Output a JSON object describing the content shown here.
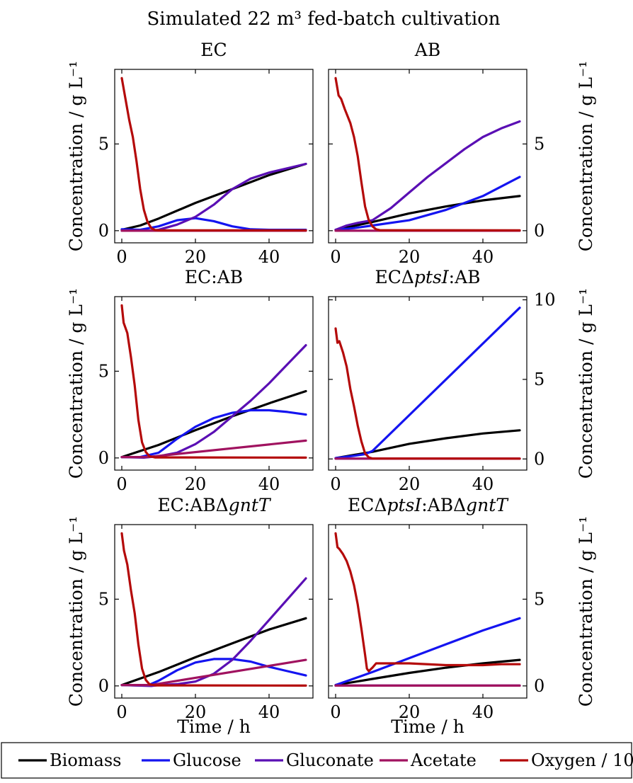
{
  "figure": {
    "title": "Simulated 22 m³ fed-batch cultivation",
    "ylabel": "Concentration / g L⁻¹",
    "xlabel": "Time / h"
  },
  "legend": {
    "placement": "bottom",
    "entries": [
      {
        "label": "Biomass",
        "color": "#000000"
      },
      {
        "label": "Glucose",
        "color": "#1414f0"
      },
      {
        "label": "Gluconate",
        "color": "#5a0fb4"
      },
      {
        "label": "Acetate",
        "color": "#a0125f"
      },
      {
        "label": "Oxygen / 1000",
        "color": "#b40a0a"
      }
    ]
  },
  "chart_data": [
    {
      "type": "line",
      "title": "EC",
      "xlim": [
        0,
        50
      ],
      "ylim": [
        -0.7,
        9.3
      ],
      "xticks": [
        0,
        20,
        40
      ],
      "yticks": [
        0,
        5
      ],
      "ytick_side": "left",
      "series": [
        {
          "name": "Biomass",
          "x": [
            0,
            5,
            10,
            20,
            30,
            40,
            50
          ],
          "y": [
            0.05,
            0.3,
            0.7,
            1.6,
            2.4,
            3.2,
            3.85
          ]
        },
        {
          "name": "Glucose",
          "x": [
            0,
            5,
            10,
            15,
            20,
            25,
            30,
            35,
            40,
            50
          ],
          "y": [
            0.08,
            0.05,
            0.25,
            0.6,
            0.72,
            0.55,
            0.25,
            0.08,
            0.05,
            0.05
          ]
        },
        {
          "name": "Gluconate",
          "x": [
            0,
            8,
            10,
            15,
            20,
            25,
            30,
            35,
            40,
            50
          ],
          "y": [
            0,
            0,
            0.05,
            0.35,
            0.8,
            1.5,
            2.4,
            3.0,
            3.35,
            3.85
          ]
        },
        {
          "name": "Acetate",
          "x": [
            0,
            50
          ],
          "y": [
            0,
            0
          ]
        },
        {
          "name": "Oxygen / 1000",
          "x": [
            0,
            1,
            2,
            3,
            4,
            5,
            6,
            7,
            8,
            9,
            10,
            50
          ],
          "y": [
            8.8,
            7.6,
            6.4,
            5.4,
            4.0,
            2.4,
            1.2,
            0.5,
            0.15,
            0.04,
            0.02,
            0.02
          ]
        }
      ]
    },
    {
      "type": "line",
      "title": "AB",
      "xlim": [
        0,
        50
      ],
      "ylim": [
        -0.7,
        9.3
      ],
      "xticks": [
        0,
        20,
        40
      ],
      "yticks": [
        0,
        5
      ],
      "ytick_side": "right",
      "series": [
        {
          "name": "Biomass",
          "x": [
            0,
            10,
            20,
            30,
            40,
            50
          ],
          "y": [
            0.05,
            0.5,
            1.0,
            1.4,
            1.75,
            2.0
          ]
        },
        {
          "name": "Glucose",
          "x": [
            0,
            5,
            10,
            20,
            30,
            40,
            50
          ],
          "y": [
            0.05,
            0.15,
            0.3,
            0.6,
            1.2,
            2.0,
            3.1
          ]
        },
        {
          "name": "Gluconate",
          "x": [
            0,
            3,
            6,
            10,
            15,
            20,
            25,
            30,
            35,
            40,
            45,
            50
          ],
          "y": [
            0.05,
            0.3,
            0.45,
            0.6,
            1.3,
            2.2,
            3.1,
            3.9,
            4.7,
            5.4,
            5.9,
            6.3
          ]
        },
        {
          "name": "Acetate",
          "x": [
            0,
            50
          ],
          "y": [
            0,
            0
          ]
        },
        {
          "name": "Oxygen / 1000",
          "x": [
            0,
            0.8,
            1.5,
            2.5,
            4,
            5,
            6,
            7,
            8,
            9,
            10,
            11,
            12,
            50
          ],
          "y": [
            8.8,
            7.8,
            7.6,
            7.0,
            6.2,
            5.4,
            4.3,
            2.8,
            1.4,
            0.6,
            0.25,
            0.08,
            0.03,
            0.02
          ]
        }
      ]
    },
    {
      "type": "line",
      "title": "EC:AB",
      "xlim": [
        0,
        50
      ],
      "ylim": [
        -0.7,
        9.3
      ],
      "xticks": [
        0,
        20,
        40
      ],
      "yticks": [
        0,
        5
      ],
      "ytick_side": "left",
      "series": [
        {
          "name": "Biomass",
          "x": [
            0,
            10,
            20,
            30,
            40,
            50
          ],
          "y": [
            0.05,
            0.75,
            1.6,
            2.4,
            3.15,
            3.85
          ]
        },
        {
          "name": "Glucose",
          "x": [
            0,
            5,
            10,
            15,
            20,
            25,
            30,
            35,
            40,
            45,
            50
          ],
          "y": [
            0.05,
            0.05,
            0.3,
            1.1,
            1.8,
            2.3,
            2.6,
            2.75,
            2.75,
            2.65,
            2.5
          ]
        },
        {
          "name": "Gluconate",
          "x": [
            0,
            6,
            10,
            15,
            20,
            25,
            30,
            35,
            40,
            45,
            50
          ],
          "y": [
            0.05,
            0.02,
            0.1,
            0.3,
            0.8,
            1.5,
            2.4,
            3.3,
            4.3,
            5.4,
            6.5
          ]
        },
        {
          "name": "Acetate",
          "x": [
            0,
            7,
            50
          ],
          "y": [
            0.05,
            0.05,
            1.0
          ]
        },
        {
          "name": "Oxygen / 1000",
          "x": [
            0,
            0.5,
            1.5,
            2.5,
            3.5,
            4.5,
            5.5,
            6.5,
            7.5,
            9,
            50
          ],
          "y": [
            8.8,
            7.8,
            7.2,
            5.8,
            4.2,
            2.2,
            0.9,
            0.35,
            0.1,
            0.03,
            0.02
          ]
        }
      ]
    },
    {
      "type": "line",
      "title": "ECΔptsI:AB",
      "xlim": [
        0,
        50
      ],
      "ylim": [
        -0.7,
        10.2
      ],
      "xticks": [
        0,
        20,
        40
      ],
      "yticks": [
        0,
        5,
        10
      ],
      "ytick_side": "right",
      "series": [
        {
          "name": "Biomass",
          "x": [
            0,
            5,
            10,
            20,
            30,
            40,
            50
          ],
          "y": [
            0.05,
            0.25,
            0.45,
            0.95,
            1.3,
            1.6,
            1.8
          ]
        },
        {
          "name": "Glucose",
          "x": [
            0,
            5,
            8,
            10,
            50
          ],
          "y": [
            0.05,
            0.2,
            0.3,
            0.5,
            9.5
          ]
        },
        {
          "name": "Gluconate",
          "x": [
            0,
            50
          ],
          "y": [
            0.02,
            0.02
          ]
        },
        {
          "name": "Acetate",
          "x": [
            0,
            50
          ],
          "y": [
            0.02,
            0.02
          ]
        },
        {
          "name": "Oxygen / 1000",
          "x": [
            0,
            0.5,
            1,
            2,
            3,
            4,
            5,
            6,
            7,
            8,
            9,
            10,
            50
          ],
          "y": [
            8.2,
            7.3,
            7.4,
            6.7,
            5.8,
            4.4,
            3.3,
            2.1,
            1.1,
            0.35,
            0.1,
            0.03,
            0.02
          ]
        }
      ]
    },
    {
      "type": "line",
      "title": "EC:ABΔgntT",
      "xlim": [
        0,
        50
      ],
      "ylim": [
        -0.7,
        9.3
      ],
      "xticks": [
        0,
        20,
        40
      ],
      "yticks": [
        0,
        5
      ],
      "ytick_side": "left",
      "series": [
        {
          "name": "Biomass",
          "x": [
            0,
            10,
            20,
            30,
            40,
            50
          ],
          "y": [
            0.05,
            0.8,
            1.65,
            2.45,
            3.25,
            3.9
          ]
        },
        {
          "name": "Glucose",
          "x": [
            0,
            7,
            10,
            15,
            20,
            25,
            30,
            35,
            40,
            45,
            50
          ],
          "y": [
            0.05,
            0.02,
            0.3,
            0.9,
            1.35,
            1.55,
            1.55,
            1.4,
            1.1,
            0.85,
            0.6
          ]
        },
        {
          "name": "Gluconate",
          "x": [
            0,
            8,
            10,
            15,
            20,
            25,
            30,
            35,
            40,
            45,
            50
          ],
          "y": [
            0.05,
            0,
            0.05,
            0.1,
            0.25,
            0.7,
            1.5,
            2.6,
            3.8,
            5.0,
            6.2
          ]
        },
        {
          "name": "Acetate",
          "x": [
            0,
            8,
            50
          ],
          "y": [
            0.05,
            0.05,
            1.5
          ]
        },
        {
          "name": "Oxygen / 1000",
          "x": [
            0,
            0.6,
            1.5,
            2.5,
            3.5,
            4.5,
            5.5,
            6.5,
            7.5,
            9,
            50
          ],
          "y": [
            8.8,
            7.8,
            7.0,
            5.5,
            4.2,
            2.4,
            1.0,
            0.35,
            0.1,
            0.03,
            0.02
          ]
        }
      ]
    },
    {
      "type": "line",
      "title": "ECΔptsI:ABΔgntT",
      "xlim": [
        0,
        50
      ],
      "ylim": [
        -0.7,
        9.3
      ],
      "xticks": [
        0,
        20,
        40
      ],
      "yticks": [
        0,
        5
      ],
      "ytick_side": "right",
      "series": [
        {
          "name": "Biomass",
          "x": [
            0,
            10,
            20,
            30,
            40,
            50
          ],
          "y": [
            0.05,
            0.4,
            0.75,
            1.05,
            1.3,
            1.5
          ]
        },
        {
          "name": "Glucose",
          "x": [
            0,
            10,
            20,
            30,
            40,
            50
          ],
          "y": [
            0.05,
            0.8,
            1.6,
            2.4,
            3.2,
            3.9
          ]
        },
        {
          "name": "Gluconate",
          "x": [
            0,
            50
          ],
          "y": [
            0.02,
            0.02
          ]
        },
        {
          "name": "Acetate",
          "x": [
            0,
            50
          ],
          "y": [
            0.02,
            0.02
          ]
        },
        {
          "name": "Oxygen / 1000",
          "x": [
            0,
            0.5,
            1,
            2,
            3,
            4,
            5,
            6,
            7,
            8,
            8.5,
            9,
            10,
            11,
            20,
            30,
            40,
            45,
            50
          ],
          "y": [
            8.8,
            8.0,
            7.9,
            7.6,
            7.2,
            6.6,
            5.8,
            4.7,
            3.3,
            1.8,
            1.0,
            0.85,
            1.05,
            1.3,
            1.3,
            1.2,
            1.2,
            1.25,
            1.25
          ]
        }
      ]
    }
  ]
}
